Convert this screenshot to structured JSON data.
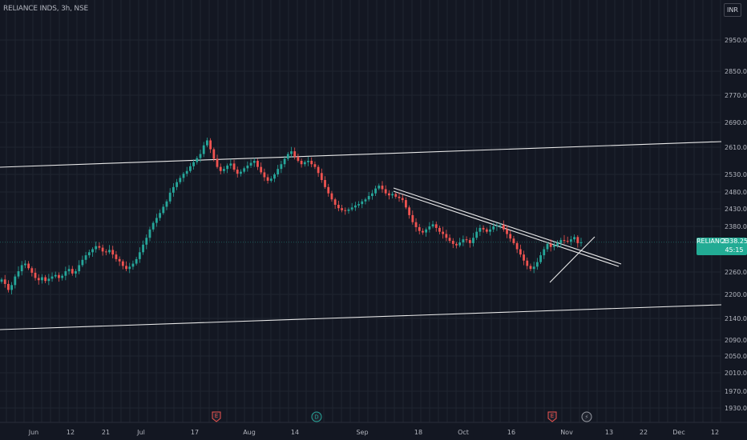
{
  "header": {
    "title": "RELIANCE INDS, 3h, NSE",
    "currency": "INR"
  },
  "price_tag": {
    "symbol": "RELIANCE",
    "price": "2338.25",
    "countdown": "45:15"
  },
  "colors": {
    "background": "#131722",
    "grid": "#1f2430",
    "text": "#b2b5be",
    "up": "#26a69a",
    "down": "#ef5350",
    "trendline": "#e8e8e8",
    "price_tag": "#22ab94",
    "event_earnings": "#ef5350",
    "event_dividend": "#26a69a",
    "event_split": "#9598a1"
  },
  "events": [
    {
      "type": "earnings",
      "icon": "earnings-icon",
      "label": "E",
      "x_date": "Jul 24"
    },
    {
      "type": "dividend",
      "icon": "dividend-icon",
      "label": "D",
      "x_date": "Aug 21"
    },
    {
      "type": "earnings",
      "icon": "earnings-icon",
      "label": "E",
      "x_date": "Oct 27"
    },
    {
      "type": "split",
      "icon": "lightning-icon",
      "label": "⚡",
      "x_date": "Nov 6"
    }
  ],
  "chart_data": {
    "type": "candlestick",
    "symbol": "RELIANCE INDS",
    "interval": "3h",
    "exchange": "NSE",
    "currency": "INR",
    "x_tick_labels": [
      "Jun",
      "12",
      "21",
      "Jul",
      "17",
      "Aug",
      "14",
      "Sep",
      "18",
      "Oct",
      "16",
      "Nov",
      "13",
      "22",
      "Dec",
      "12"
    ],
    "y_tick_labels": [
      2950,
      2850,
      2770,
      2690,
      2610,
      2530,
      2480,
      2430,
      2380,
      2260,
      2200,
      2140,
      2090,
      2050,
      2010,
      1970,
      1930
    ],
    "y_scale": "log",
    "ylim": [
      1905,
      3040
    ],
    "last_price": 2338.25,
    "closes": [
      2240,
      2228,
      2212,
      2225,
      2248,
      2262,
      2278,
      2282,
      2270,
      2258,
      2244,
      2238,
      2246,
      2236,
      2242,
      2248,
      2252,
      2244,
      2250,
      2262,
      2268,
      2256,
      2262,
      2278,
      2292,
      2304,
      2312,
      2320,
      2328,
      2324,
      2314,
      2312,
      2318,
      2306,
      2294,
      2288,
      2276,
      2268,
      2274,
      2282,
      2294,
      2312,
      2332,
      2350,
      2372,
      2390,
      2404,
      2418,
      2436,
      2452,
      2478,
      2494,
      2508,
      2520,
      2532,
      2540,
      2554,
      2566,
      2578,
      2590,
      2616,
      2632,
      2604,
      2576,
      2552,
      2540,
      2546,
      2556,
      2562,
      2544,
      2532,
      2538,
      2548,
      2556,
      2564,
      2570,
      2552,
      2536,
      2522,
      2512,
      2518,
      2530,
      2546,
      2560,
      2576,
      2590,
      2598,
      2582,
      2570,
      2560,
      2566,
      2570,
      2560,
      2552,
      2534,
      2514,
      2494,
      2476,
      2458,
      2442,
      2432,
      2426,
      2424,
      2428,
      2434,
      2440,
      2444,
      2452,
      2458,
      2468,
      2476,
      2490,
      2498,
      2488,
      2476,
      2470,
      2474,
      2466,
      2462,
      2456,
      2434,
      2412,
      2392,
      2378,
      2368,
      2364,
      2372,
      2380,
      2386,
      2376,
      2366,
      2360,
      2350,
      2342,
      2334,
      2330,
      2338,
      2346,
      2344,
      2336,
      2350,
      2366,
      2376,
      2372,
      2366,
      2372,
      2380,
      2382,
      2384,
      2372,
      2360,
      2348,
      2336,
      2320,
      2306,
      2290,
      2276,
      2268,
      2274,
      2286,
      2304,
      2320,
      2334,
      2326,
      2330,
      2336,
      2344,
      2342,
      2340,
      2346,
      2352,
      2336,
      2338
    ]
  }
}
